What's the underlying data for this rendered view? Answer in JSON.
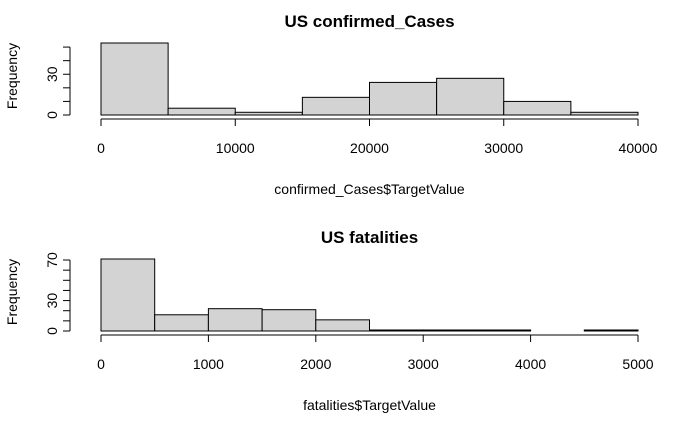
{
  "chart_data": [
    {
      "type": "bar",
      "title": "US confirmed_Cases",
      "xlabel": "confirmed_Cases$TargetValue",
      "ylabel": "Frequency",
      "bin_edges": [
        0,
        5000,
        10000,
        15000,
        20000,
        25000,
        30000,
        35000,
        40000
      ],
      "values": [
        53,
        5,
        2,
        13,
        24,
        27,
        10,
        2
      ],
      "xlim": [
        0,
        40000
      ],
      "ylim": [
        0,
        53
      ],
      "x_ticks": [
        0,
        10000,
        20000,
        30000,
        40000
      ],
      "y_ticks": [
        0,
        30
      ],
      "y_minor_ticks": [
        0,
        10,
        20,
        30,
        40,
        50
      ],
      "grid": false,
      "bar_color": "#d3d3d3"
    },
    {
      "type": "bar",
      "title": "US fatalities",
      "xlabel": "fatalities$TargetValue",
      "ylabel": "Frequency",
      "bin_edges": [
        0,
        500,
        1000,
        1500,
        2000,
        2500,
        3000,
        3500,
        4000,
        4500,
        5000
      ],
      "values": [
        71,
        16,
        22,
        21,
        11,
        1,
        1,
        1,
        0,
        1
      ],
      "xlim": [
        0,
        5000
      ],
      "ylim": [
        0,
        71
      ],
      "x_ticks": [
        0,
        1000,
        2000,
        3000,
        4000,
        5000
      ],
      "y_ticks": [
        0,
        30,
        70
      ],
      "y_minor_ticks": [
        0,
        10,
        20,
        30,
        40,
        50,
        60,
        70
      ],
      "grid": false,
      "bar_color": "#d3d3d3"
    }
  ]
}
